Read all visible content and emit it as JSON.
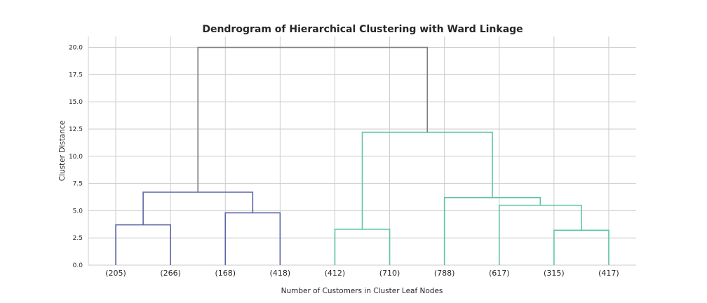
{
  "chart_data": {
    "type": "dendrogram",
    "title": "Dendrogram of Hierarchical Clustering with Ward Linkage",
    "xlabel": "Number of Customers in Cluster Leaf Nodes",
    "ylabel": "Cluster Distance",
    "ylim": [
      0,
      21
    ],
    "yticks": [
      0.0,
      2.5,
      5.0,
      7.5,
      10.0,
      12.5,
      15.0,
      17.5,
      20.0
    ],
    "ytick_labels": [
      "0.0",
      "2.5",
      "5.0",
      "7.5",
      "10.0",
      "12.5",
      "15.0",
      "17.5",
      "20.0"
    ],
    "grid": true,
    "leaves": [
      "(205)",
      "(266)",
      "(168)",
      "(418)",
      "(412)",
      "(710)",
      "(788)",
      "(617)",
      "(315)",
      "(417)"
    ],
    "colors": {
      "cluster_a": "#5b66a8",
      "cluster_b": "#5ec4a6",
      "root": "#7f7f7f"
    },
    "merges": [
      {
        "name": "merge-205-266",
        "left": 0,
        "right": 1,
        "height": 3.7,
        "color": "cluster_a"
      },
      {
        "name": "merge-168-418",
        "left": 2,
        "right": 3,
        "height": 4.8,
        "color": "cluster_a"
      },
      {
        "name": "merge-a-top",
        "left": "merge-205-266",
        "right": "merge-168-418",
        "height": 6.7,
        "color": "cluster_a"
      },
      {
        "name": "merge-412-710",
        "left": 4,
        "right": 5,
        "height": 3.3,
        "color": "cluster_b"
      },
      {
        "name": "merge-315-417",
        "left": 8,
        "right": 9,
        "height": 3.2,
        "color": "cluster_b"
      },
      {
        "name": "merge-617-sub",
        "left": 7,
        "right": "merge-315-417",
        "height": 5.5,
        "color": "cluster_b"
      },
      {
        "name": "merge-788-sub",
        "left": 6,
        "right": "merge-617-sub",
        "height": 6.2,
        "color": "cluster_b"
      },
      {
        "name": "merge-b-top",
        "left": "merge-412-710",
        "right": "merge-788-sub",
        "height": 12.2,
        "color": "cluster_b"
      },
      {
        "name": "merge-root",
        "left": "merge-a-top",
        "right": "merge-b-top",
        "height": 20.0,
        "color": "root"
      }
    ]
  }
}
